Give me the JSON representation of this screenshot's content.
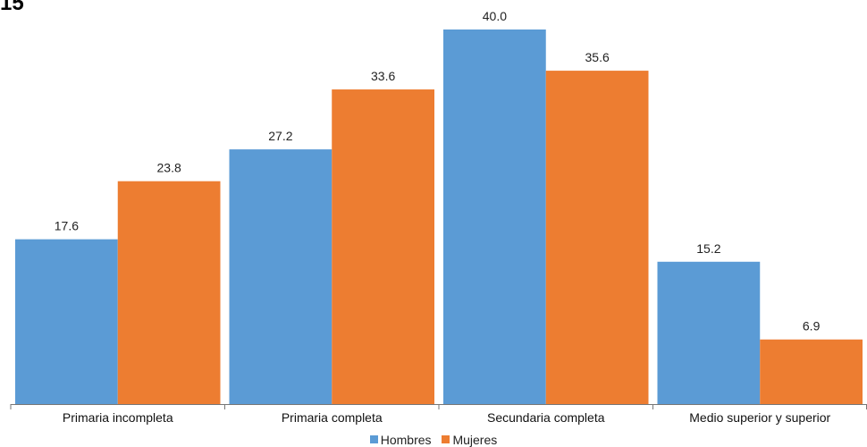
{
  "corner_text": "15",
  "colors": {
    "hombres": "#5b9bd5",
    "mujeres": "#ed7d31"
  },
  "chart_data": {
    "type": "bar",
    "categories": [
      "Primaria incompleta",
      "Primaria completa",
      "Secundaria completa",
      "Medio superior y superior"
    ],
    "series": [
      {
        "name": "Hombres",
        "values": [
          17.6,
          27.2,
          40.0,
          15.2
        ]
      },
      {
        "name": "Mujeres",
        "values": [
          23.8,
          33.6,
          35.6,
          6.9
        ]
      }
    ],
    "value_labels": [
      [
        "17.6",
        "27.2",
        "40.0",
        "15.2"
      ],
      [
        "23.8",
        "33.6",
        "35.6",
        "6.9"
      ]
    ],
    "title": "",
    "xlabel": "",
    "ylabel": "",
    "ylim": [
      0,
      40
    ],
    "grid": false,
    "legend_position": "bottom"
  }
}
